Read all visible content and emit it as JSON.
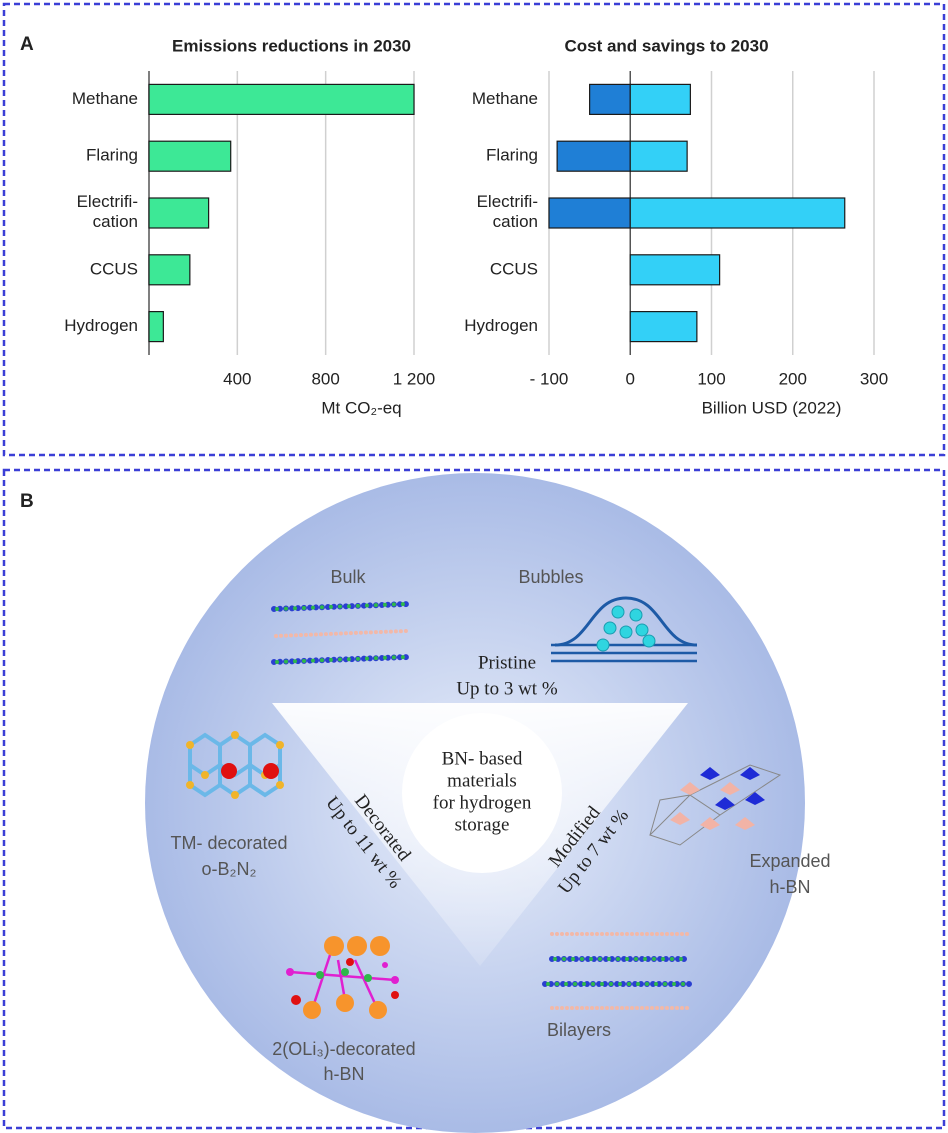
{
  "panels": [
    "A",
    "B"
  ],
  "chart_data": [
    {
      "type": "bar",
      "orientation": "horizontal",
      "title": "Emissions reductions in 2030",
      "categories": [
        "Methane",
        "Flaring",
        "Electrifi-\ncation",
        "CCUS",
        "Hydrogen"
      ],
      "values": [
        1200,
        370,
        270,
        185,
        65
      ],
      "color": "#3de896",
      "x_label": "Mt CO₂-eq",
      "xlim": [
        0,
        1200
      ],
      "xticks": [
        400,
        800,
        {
          "value": 1200,
          "label": "1 200"
        }
      ],
      "grid": true
    },
    {
      "type": "bar",
      "orientation": "horizontal",
      "stacked": true,
      "title": "Cost and savings to 2030",
      "categories": [
        "Methane",
        "Flaring",
        "Electrifi-\ncation",
        "CCUS",
        "Hydrogen"
      ],
      "series": [
        {
          "color": "#1f7fd6",
          "values": [
            -50,
            -90,
            -100,
            null,
            null
          ]
        },
        {
          "color": "#33d0f7",
          "values": [
            74,
            70,
            264,
            110,
            82
          ]
        }
      ],
      "x_label": "Billion USD (2022)",
      "xlim": [
        -100,
        300
      ],
      "xticks": [
        {
          "value": -100,
          "label": "- 100"
        },
        0,
        100,
        200,
        300
      ],
      "grid": true
    }
  ],
  "diagram": {
    "center": [
      "BN- based",
      "materials",
      "for hydrogen",
      "storage"
    ],
    "pristine": {
      "name": "Pristine",
      "capacity": "Up to 3 wt %",
      "examples": [
        "Bulk",
        "Bubbles"
      ]
    },
    "decorated": {
      "name": "Decorated",
      "capacity": "Up to 11 wt %",
      "examples": [
        [
          "TM- decorated",
          "o-B₂N₂"
        ],
        [
          "2(OLi₃)-decorated",
          "h-BN"
        ]
      ]
    },
    "modified": {
      "name": "Modified",
      "capacity": "Up to 7 wt %",
      "examples": [
        [
          "Expanded",
          "h-BN"
        ],
        [
          "Bilayers"
        ]
      ]
    }
  }
}
